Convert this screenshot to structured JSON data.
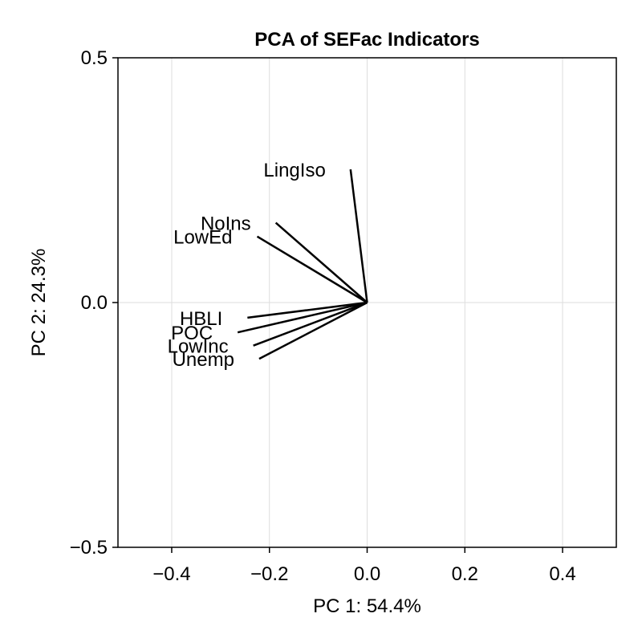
{
  "chart_data": {
    "type": "scatter",
    "subtype": "pca-biplot",
    "title": "PCA of SEFac Indicators",
    "xlabel": "PC 1: 54.4%",
    "ylabel": "PC 2: 24.3%",
    "xlim": [
      -0.51,
      0.51
    ],
    "ylim": [
      -0.5,
      0.5
    ],
    "grid": true,
    "xticks": [
      -0.4,
      -0.2,
      0.0,
      0.2,
      0.4
    ],
    "xtick_labels": [
      "−0.4",
      "−0.2",
      "0.0",
      "0.2",
      "0.4"
    ],
    "yticks": [
      -0.5,
      0.0,
      0.5
    ],
    "ytick_labels": [
      "−0.5",
      "0.0",
      "0.5"
    ],
    "vectors": [
      {
        "name": "LingIso",
        "x": -0.034,
        "y": 0.272
      },
      {
        "name": "NoIns",
        "x": -0.187,
        "y": 0.163
      },
      {
        "name": "LowEd",
        "x": -0.225,
        "y": 0.135
      },
      {
        "name": "HBLI",
        "x": -0.245,
        "y": -0.031
      },
      {
        "name": "POC",
        "x": -0.265,
        "y": -0.061
      },
      {
        "name": "LowInc",
        "x": -0.233,
        "y": -0.088
      },
      {
        "name": "Unemp",
        "x": -0.221,
        "y": -0.115
      }
    ]
  }
}
